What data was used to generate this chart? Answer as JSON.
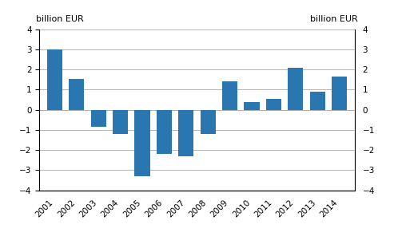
{
  "years": [
    2001,
    2002,
    2003,
    2004,
    2005,
    2006,
    2007,
    2008,
    2009,
    2010,
    2011,
    2012,
    2013,
    2014
  ],
  "values": [
    3.0,
    1.55,
    -0.85,
    -1.2,
    -3.3,
    -2.2,
    -2.3,
    -1.2,
    1.4,
    0.4,
    0.55,
    2.1,
    0.9,
    1.65
  ],
  "bar_color": "#2976b0",
  "ylim": [
    -4,
    4
  ],
  "yticks": [
    -4,
    -3,
    -2,
    -1,
    0,
    1,
    2,
    3,
    4
  ],
  "ylabel_left": "billion EUR",
  "ylabel_right": "billion EUR",
  "background_color": "#ffffff",
  "grid_color": "#aaaaaa",
  "tick_fontsize": 7.5,
  "label_fontsize": 8
}
